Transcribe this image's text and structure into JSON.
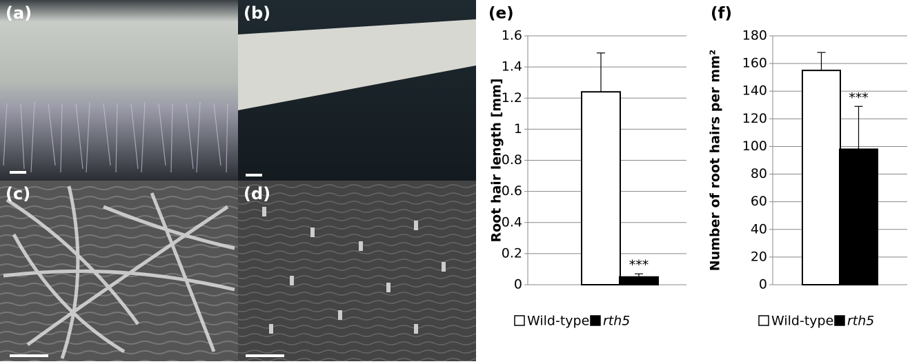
{
  "panels": [
    "(a)",
    "(b)",
    "(c)",
    "(d)"
  ],
  "chart_data": [
    {
      "type": "bar",
      "title": "(e)",
      "y_label": "Root hair length [mm]",
      "series": [
        {
          "name": "Wild-type",
          "color": "#ffffff",
          "values": [
            1.24
          ],
          "errors": [
            0.25
          ]
        },
        {
          "name": "rth5",
          "color": "#000000",
          "values": [
            0.05
          ],
          "errors": [
            0.02
          ]
        }
      ],
      "annotations": [
        "***"
      ],
      "ylim": [
        0,
        1.6
      ],
      "yticks": [
        0,
        0.2,
        0.4,
        0.6,
        0.8,
        1,
        1.2,
        1.4,
        1.6
      ],
      "grid": true
    },
    {
      "type": "bar",
      "title": "(f)",
      "y_label": "Number of root hairs per mm²",
      "series": [
        {
          "name": "Wild-type",
          "color": "#ffffff",
          "values": [
            155
          ],
          "errors": [
            13
          ]
        },
        {
          "name": "rth5",
          "color": "#000000",
          "values": [
            98
          ],
          "errors": [
            31
          ]
        }
      ],
      "annotations": [
        "***"
      ],
      "ylim": [
        0,
        180
      ],
      "yticks": [
        0,
        20,
        40,
        60,
        80,
        100,
        120,
        140,
        160,
        180
      ],
      "grid": true
    }
  ]
}
